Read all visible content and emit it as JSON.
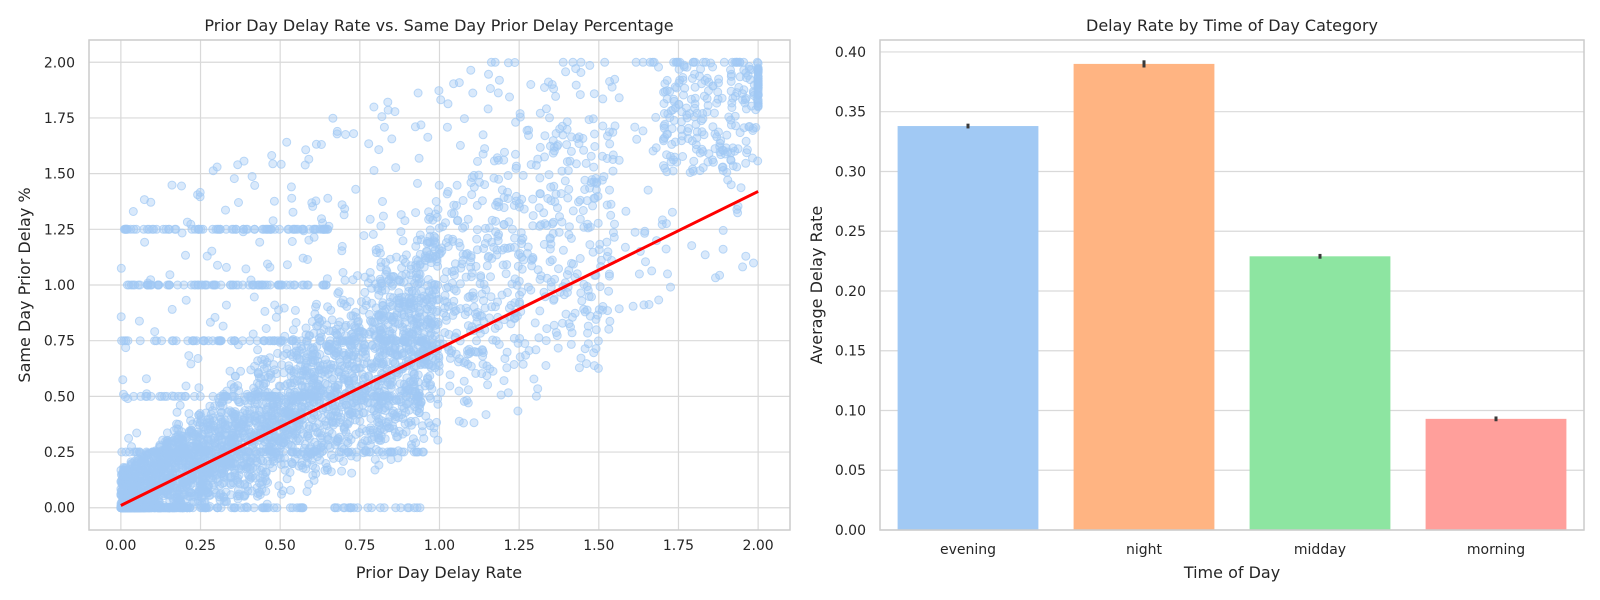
{
  "chart_data": [
    {
      "type": "scatter",
      "title": "Prior Day Delay Rate vs. Same Day Prior Delay Percentage",
      "xlabel": "Prior Day Delay Rate",
      "ylabel": "Same Day Prior Delay %",
      "xlim": [
        -0.1,
        2.1
      ],
      "ylim": [
        -0.1,
        2.1
      ],
      "xticks": [
        "0.00",
        "0.25",
        "0.50",
        "0.75",
        "1.00",
        "1.25",
        "1.50",
        "1.75",
        "2.00"
      ],
      "yticks": [
        "0.00",
        "0.25",
        "0.50",
        "0.75",
        "1.00",
        "1.25",
        "1.50",
        "1.75",
        "2.00"
      ],
      "grid": true,
      "point_color": "#a1c9f4",
      "point_alpha": 0.4,
      "regression_line": {
        "color": "#ff0000",
        "x": [
          0.0,
          2.0
        ],
        "y": [
          0.01,
          1.42
        ]
      },
      "points_summary": "dense cloud concentrated at x 0.0–1.0, y 0.0–1.0, positive trend, cluster near (2.0, 2.0)"
    },
    {
      "type": "bar",
      "title": "Delay Rate by Time of Day Category",
      "xlabel": "Time of Day",
      "ylabel": "Average Delay Rate",
      "categories": [
        "evening",
        "night",
        "midday",
        "morning"
      ],
      "values": [
        0.338,
        0.39,
        0.229,
        0.093
      ],
      "error": [
        0.002,
        0.003,
        0.002,
        0.002
      ],
      "colors": [
        "#a1c9f4",
        "#ffb482",
        "#8de5a1",
        "#ff9f9b"
      ],
      "ylim": [
        0,
        0.41
      ],
      "yticks": [
        "0.00",
        "0.05",
        "0.10",
        "0.15",
        "0.20",
        "0.25",
        "0.30",
        "0.35",
        "0.40"
      ],
      "grid": true
    }
  ]
}
